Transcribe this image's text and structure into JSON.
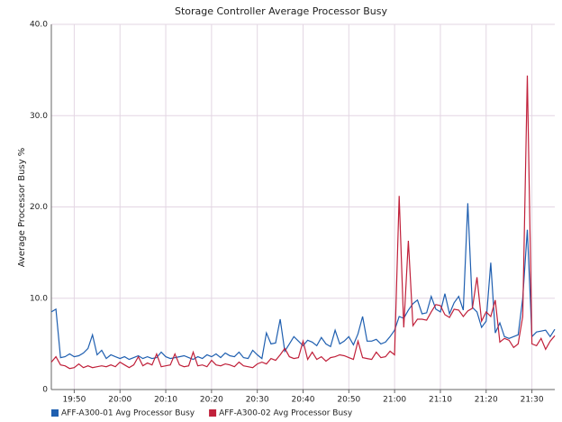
{
  "chart_data": {
    "type": "line",
    "title": "Storage Controller Average Processor Busy",
    "ylabel": "Average Processor Busy %",
    "x": [
      "19:45",
      "19:46",
      "19:47",
      "19:48",
      "19:49",
      "19:50",
      "19:51",
      "19:52",
      "19:53",
      "19:54",
      "19:55",
      "19:56",
      "19:57",
      "19:58",
      "19:59",
      "20:00",
      "20:01",
      "20:02",
      "20:03",
      "20:04",
      "20:05",
      "20:06",
      "20:07",
      "20:08",
      "20:09",
      "20:10",
      "20:11",
      "20:12",
      "20:13",
      "20:14",
      "20:15",
      "20:16",
      "20:17",
      "20:18",
      "20:19",
      "20:20",
      "20:21",
      "20:22",
      "20:23",
      "20:24",
      "20:25",
      "20:26",
      "20:27",
      "20:28",
      "20:29",
      "20:30",
      "20:31",
      "20:32",
      "20:33",
      "20:34",
      "20:35",
      "20:36",
      "20:37",
      "20:38",
      "20:39",
      "20:40",
      "20:41",
      "20:42",
      "20:43",
      "20:44",
      "20:45",
      "20:46",
      "20:47",
      "20:48",
      "20:49",
      "20:50",
      "20:51",
      "20:52",
      "20:53",
      "20:54",
      "20:55",
      "20:56",
      "20:57",
      "20:58",
      "20:59",
      "21:00",
      "21:01",
      "21:02",
      "21:03",
      "21:04",
      "21:05",
      "21:06",
      "21:07",
      "21:08",
      "21:09",
      "21:10",
      "21:11",
      "21:12",
      "21:13",
      "21:14",
      "21:15",
      "21:16",
      "21:17",
      "21:18",
      "21:19",
      "21:20",
      "21:21",
      "21:22",
      "21:23",
      "21:24",
      "21:25",
      "21:26",
      "21:27",
      "21:28",
      "21:29",
      "21:30",
      "21:31",
      "21:32",
      "21:33",
      "21:34",
      "21:35"
    ],
    "series": [
      {
        "name": "AFF-A300-01 Avg Processor Busy",
        "color": "#1f5fb0",
        "values": [
          8.5,
          8.8,
          3.5,
          3.6,
          3.9,
          3.6,
          3.7,
          4.0,
          4.5,
          6.0,
          3.8,
          4.3,
          3.4,
          3.8,
          3.6,
          3.4,
          3.6,
          3.3,
          3.5,
          3.7,
          3.4,
          3.6,
          3.4,
          3.5,
          4.1,
          3.6,
          3.4,
          3.5,
          3.6,
          3.7,
          3.5,
          3.3,
          3.6,
          3.4,
          3.8,
          3.6,
          3.9,
          3.5,
          4.0,
          3.7,
          3.6,
          4.1,
          3.5,
          3.4,
          4.3,
          3.8,
          3.4,
          6.2,
          5.0,
          5.1,
          7.7,
          4.2,
          5.0,
          5.8,
          5.3,
          4.8,
          5.4,
          5.2,
          4.8,
          5.7,
          5.0,
          4.7,
          6.5,
          5.0,
          5.3,
          5.8,
          4.9,
          6.1,
          8.0,
          5.3,
          5.3,
          5.5,
          5.0,
          5.2,
          5.8,
          6.5,
          8.0,
          7.8,
          8.7,
          9.4,
          9.8,
          8.3,
          8.4,
          10.2,
          8.8,
          8.5,
          10.5,
          8.3,
          9.5,
          10.2,
          8.7,
          20.4,
          9.0,
          8.5,
          6.8,
          7.5,
          13.9,
          6.2,
          7.3,
          5.8,
          5.6,
          5.8,
          6.0,
          10.0,
          17.5,
          5.8,
          6.3,
          6.4,
          6.5,
          5.8,
          6.6
        ]
      },
      {
        "name": "AFF-A300-02 Avg Processor Busy",
        "color": "#c0203a",
        "values": [
          3.0,
          3.6,
          2.7,
          2.6,
          2.3,
          2.4,
          2.8,
          2.4,
          2.6,
          2.4,
          2.5,
          2.6,
          2.5,
          2.7,
          2.5,
          3.0,
          2.7,
          2.4,
          2.7,
          3.6,
          2.6,
          2.9,
          2.7,
          3.9,
          2.5,
          2.6,
          2.7,
          3.9,
          2.7,
          2.5,
          2.6,
          4.1,
          2.6,
          2.7,
          2.5,
          3.2,
          2.7,
          2.6,
          2.8,
          2.7,
          2.5,
          3.0,
          2.6,
          2.5,
          2.4,
          2.8,
          3.0,
          2.8,
          3.4,
          3.2,
          3.8,
          4.5,
          3.6,
          3.4,
          3.5,
          5.3,
          3.3,
          4.1,
          3.3,
          3.6,
          3.1,
          3.5,
          3.6,
          3.8,
          3.7,
          3.5,
          3.3,
          5.3,
          3.5,
          3.4,
          3.3,
          4.1,
          3.5,
          3.6,
          4.2,
          3.8,
          21.2,
          6.8,
          16.3,
          7.0,
          7.7,
          7.7,
          7.6,
          8.5,
          9.3,
          9.2,
          8.2,
          7.9,
          8.8,
          8.7,
          8.0,
          8.6,
          8.9,
          12.3,
          7.5,
          8.5,
          8.0,
          9.8,
          5.2,
          5.6,
          5.4,
          4.6,
          5.0,
          8.0,
          34.4,
          5.0,
          4.8,
          5.6,
          4.4,
          5.3,
          5.9
        ]
      }
    ],
    "xlim": [
      "19:45",
      "21:35"
    ],
    "xticks": [
      "19:50",
      "20:00",
      "20:10",
      "20:20",
      "20:30",
      "20:40",
      "20:50",
      "21:00",
      "21:10",
      "21:20",
      "21:30"
    ],
    "ylim": [
      0,
      40
    ],
    "yticks": [
      0,
      {
        "value": 10,
        "label": "10.0"
      },
      {
        "value": 20,
        "label": "20.0"
      },
      {
        "value": 30,
        "label": "30.0"
      },
      {
        "value": 40,
        "label": "40.0"
      }
    ],
    "grid": true,
    "legend": "bottom-left"
  }
}
